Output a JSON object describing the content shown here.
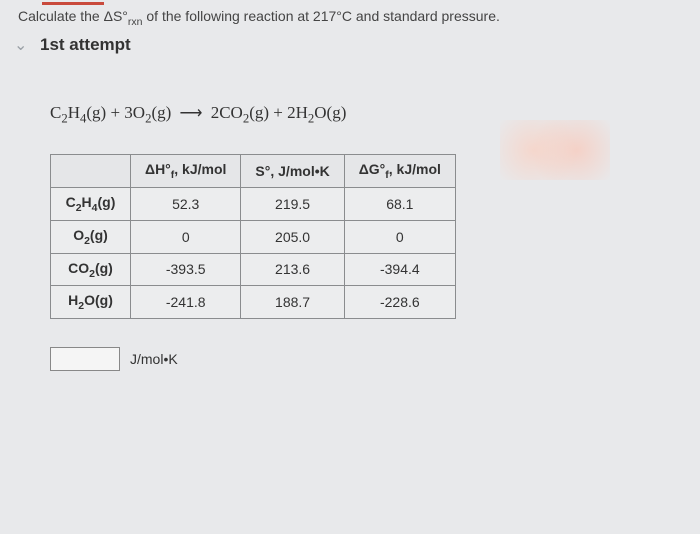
{
  "question": {
    "prefix": "Calculate the ΔS°",
    "sub": "rxn",
    "suffix": " of the following reaction at 217°C and standard pressure."
  },
  "attempt": {
    "label": "1st attempt"
  },
  "reaction": {
    "r1": "C",
    "r1s1": "2",
    "r1b": "H",
    "r1s2": "4",
    "r1p": "(g) + 3O",
    "r1s3": "2",
    "r1e": "(g)",
    "arrow": "⟶",
    "p1": " 2CO",
    "p1s1": "2",
    "p1b": "(g) + 2H",
    "p1s2": "2",
    "p1e": "O(g)"
  },
  "table": {
    "headers": {
      "c0": "",
      "c1a": "ΔH°",
      "c1b": "f",
      "c1c": ", kJ/mol",
      "c2": "S°, J/mol•K",
      "c3a": "ΔG°",
      "c3b": "f",
      "c3c": ", kJ/mol"
    },
    "rows": [
      {
        "species": {
          "a": "C",
          "s1": "2",
          "b": "H",
          "s2": "4",
          "c": "(g)"
        },
        "dh": "52.3",
        "s": "219.5",
        "dg": "68.1"
      },
      {
        "species": {
          "a": "O",
          "s1": "2",
          "b": "",
          "s2": "",
          "c": "(g)"
        },
        "dh": "0",
        "s": "205.0",
        "dg": "0"
      },
      {
        "species": {
          "a": "CO",
          "s1": "2",
          "b": "",
          "s2": "",
          "c": "(g)"
        },
        "dh": "-393.5",
        "s": "213.6",
        "dg": "-394.4"
      },
      {
        "species": {
          "a": "H",
          "s1": "2",
          "b": "O",
          "s2": "",
          "c": "(g)"
        },
        "dh": "-241.8",
        "s": "188.7",
        "dg": "-228.6"
      }
    ]
  },
  "answer": {
    "value": "",
    "unit": "J/mol•K"
  },
  "styling": {
    "background": "#e8e9eb",
    "accent": "#c94a3c",
    "border": "#8a8c8e",
    "text": "#333333"
  }
}
